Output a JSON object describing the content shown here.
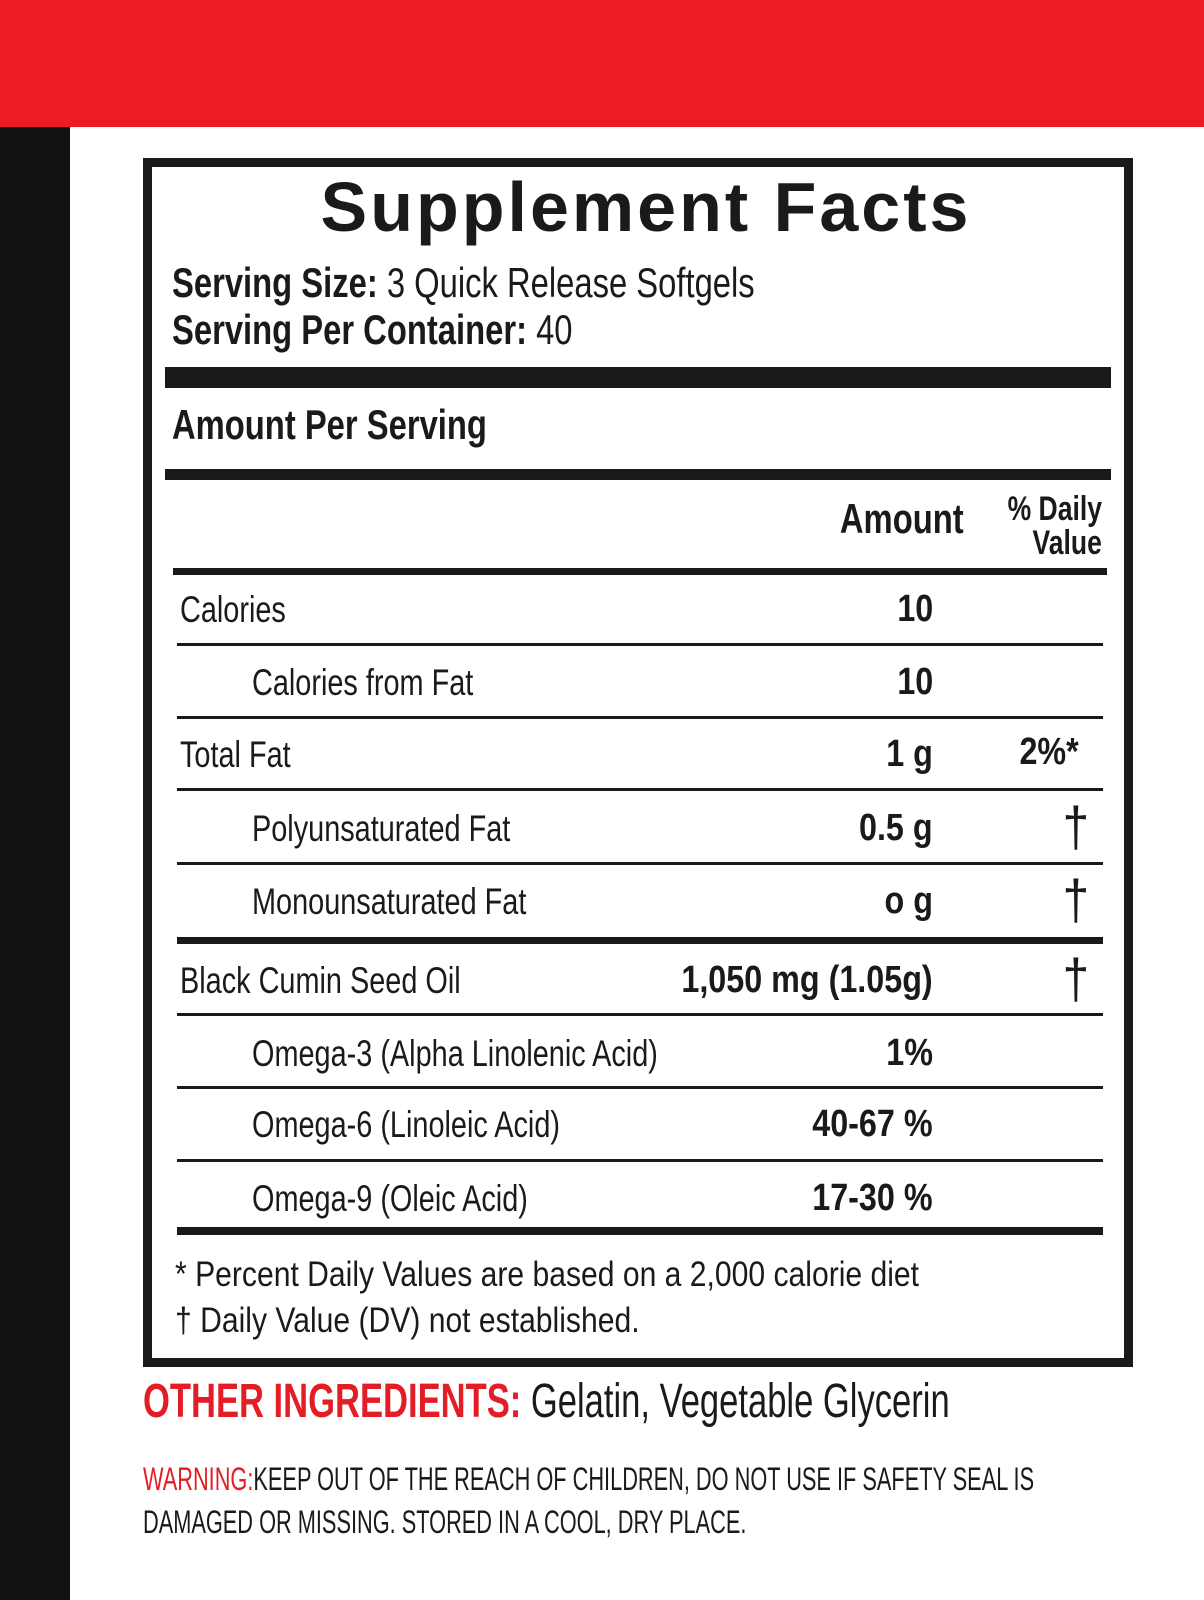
{
  "colors": {
    "top_band": "#ec1c24",
    "left_strip": "#111111",
    "accent_red": "#e31d25"
  },
  "label": {
    "title": "Supplement Facts",
    "serving_size_label": "Serving Size:",
    "serving_size_value": "3 Quick Release Softgels",
    "servings_per_container_label": "Serving Per Container:",
    "servings_per_container_value": "40",
    "amount_per_serving": "Amount Per Serving",
    "col_amount": "Amount",
    "col_dv_line1": "% Daily",
    "col_dv_line2": "Value",
    "rows": [
      {
        "name": "Calories",
        "amount": "10",
        "dv": "",
        "indent": false
      },
      {
        "name": "Calories from Fat",
        "amount": "10",
        "dv": "",
        "indent": true
      },
      {
        "name": "Total Fat",
        "amount": "1 g",
        "dv": "2%*",
        "indent": false
      },
      {
        "name": "Polyunsaturated Fat",
        "amount": "0.5 g",
        "dv": "†",
        "indent": true
      },
      {
        "name": "Monounsaturated Fat",
        "amount": "o g",
        "dv": "†",
        "indent": true
      },
      {
        "name": "Black Cumin Seed Oil",
        "amount": "1,050 mg (1.05g)",
        "dv": "†",
        "indent": false
      },
      {
        "name": "Omega-3 (Alpha Linolenic Acid)",
        "amount": "1%",
        "dv": "",
        "indent": true
      },
      {
        "name": "Omega-6 (Linoleic Acid)",
        "amount": "40-67 %",
        "dv": "",
        "indent": true
      },
      {
        "name": "Omega-9 (Oleic Acid)",
        "amount": "17-30 %",
        "dv": "",
        "indent": true
      }
    ],
    "footnote_1": "* Percent Daily Values are based on a 2,000 calorie diet",
    "footnote_2": "† Daily Value (DV) not established."
  },
  "other_ingredients": {
    "label": "OTHER INGREDIENTS:",
    "value": "Gelatin, Vegetable Glycerin"
  },
  "warning": {
    "label": "WARNING:",
    "line1": "KEEP OUT OF THE REACH OF CHILDREN, DO  NOT  USE  IF  SAFETY  SEAL  IS",
    "line2": "DAMAGED  OR MISSING. STORED IN A COOL, DRY PLACE."
  }
}
